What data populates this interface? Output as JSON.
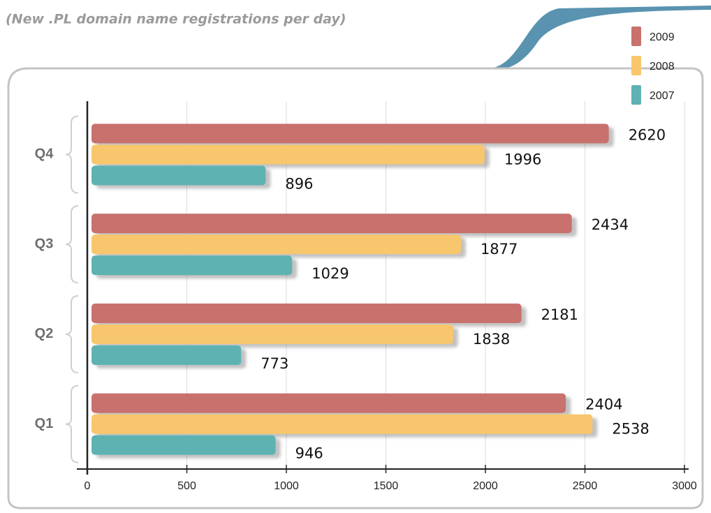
{
  "chart_data": {
    "type": "barh",
    "subtitle": "(New .PL domain name registrations per day)",
    "categories": [
      "Q4",
      "Q3",
      "Q2",
      "Q1"
    ],
    "series": [
      {
        "name": "2009",
        "color": "#c8716d",
        "values": [
          2620,
          2434,
          2181,
          2404
        ]
      },
      {
        "name": "2008",
        "color": "#f8c66c",
        "values": [
          1996,
          1877,
          1838,
          2538
        ]
      },
      {
        "name": "2007",
        "color": "#5fb2b2",
        "values": [
          896,
          1029,
          773,
          946
        ]
      }
    ],
    "xlim": [
      0,
      3000
    ],
    "xticks": [
      0,
      500,
      1000,
      1500,
      2000,
      2500,
      3000
    ],
    "grid": true,
    "legend": "top-right"
  }
}
